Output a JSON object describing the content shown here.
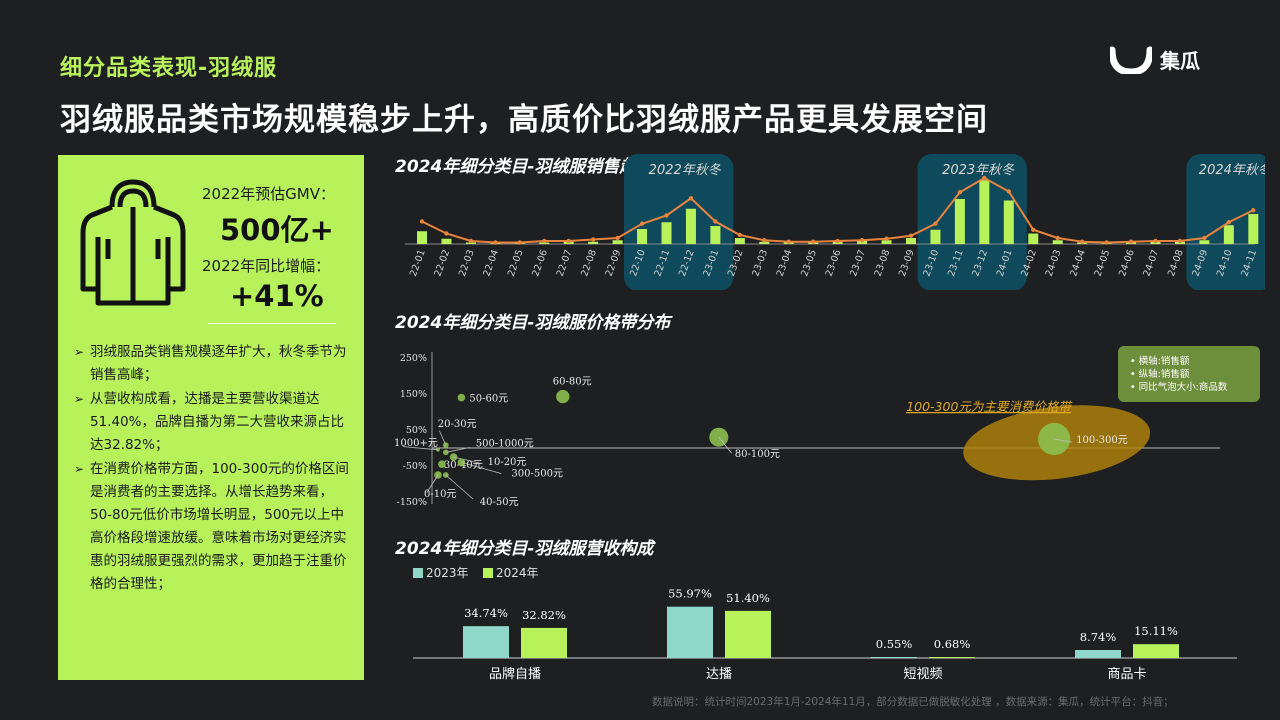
{
  "header": {
    "subtitle": "细分品类表现-羽绒服",
    "headline": "羽绒服品类市场规模稳步上升，高质价比羽绒服产品更具发展空间"
  },
  "logo": {
    "text": "集瓜",
    "icon": "jigua-logo-icon"
  },
  "sidebar": {
    "icon": "down-jacket-icon",
    "gmv_label": "2022年预估GMV：",
    "gmv_value": "500亿+",
    "growth_label": "2022年同比增幅：",
    "growth_value": "+41%",
    "bullets": [
      "羽绒服品类销售规模逐年扩大，秋冬季节为销售高峰；",
      "从营收构成看，达播是主要营收渠道达51.40%，品牌自播为第二大营收来源占比达32.82%；",
      "在消费价格带方面，100-300元的价格区间是消费者的主要选择。从增长趋势来看，50-80元低价市场增长明显，500元以上中高价格段增速放缓。意味着市场对更经济实惠的羽绒服更强烈的需求，更加趋于注重价格的合理性；"
    ]
  },
  "colors": {
    "accent": "#b7f25a",
    "line": "#e8843d",
    "teal": "#8fd8c9",
    "highlight_bg": "#0f4a5c",
    "bubble_band": "#b8860b"
  },
  "chart_data": [
    {
      "type": "bar",
      "title": "2024年细分类目-羽绒服销售趋势",
      "categories": [
        "22-01",
        "22-02",
        "22-03",
        "22-04",
        "22-05",
        "22-06",
        "22-07",
        "22-08",
        "22-09",
        "22-10",
        "22-11",
        "22-12",
        "23-01",
        "23-02",
        "23-03",
        "23-04",
        "23-05",
        "23-06",
        "23-07",
        "23-08",
        "23-09",
        "23-10",
        "23-11",
        "23-12",
        "24-01",
        "24-02",
        "24-03",
        "24-04",
        "24-05",
        "24-06",
        "24-07",
        "24-08",
        "24-09",
        "24-10",
        "24-11"
      ],
      "values": [
        17,
        7,
        2,
        1,
        1,
        2,
        3,
        3,
        5,
        20,
        29,
        47,
        24,
        8,
        3,
        2,
        2,
        3,
        4,
        5,
        8,
        19,
        60,
        85,
        58,
        14,
        5,
        2,
        1,
        2,
        3,
        3,
        5,
        25,
        40
      ],
      "line_values": [
        30,
        14,
        4,
        2,
        2,
        4,
        4,
        6,
        8,
        27,
        38,
        61,
        30,
        12,
        5,
        3,
        3,
        4,
        5,
        7,
        11,
        27,
        69,
        88,
        70,
        19,
        8,
        3,
        2,
        3,
        4,
        4,
        8,
        29,
        45
      ],
      "ylim": [
        0,
        100
      ],
      "highlights": [
        {
          "label": "2022年秋冬",
          "from": "22-10",
          "to": "23-01"
        },
        {
          "label": "2023年秋冬",
          "from": "23-10",
          "to": "24-01"
        },
        {
          "label": "2024年秋冬",
          "from": "24-09",
          "to": "24-11"
        }
      ]
    },
    {
      "type": "scatter",
      "title": "2024年细分类目-羽绒服价格带分布",
      "y_ticks": [
        "250%",
        "150%",
        "50%",
        "-50%",
        "-150%"
      ],
      "ylim": [
        -150,
        250
      ],
      "xlim": [
        0,
        100
      ],
      "legend": [
        {
          "marker": "•",
          "text": "横轴:销售额"
        },
        {
          "marker": "•",
          "text": "纵轴:销售额"
        },
        {
          "marker": "•",
          "text": "同比气泡大小:商品数"
        }
      ],
      "annotation": "100-300元为主要消费价格带",
      "points": [
        {
          "label": "50-60元",
          "x": 3,
          "y": 140,
          "size": 4
        },
        {
          "label": "60-80元",
          "x": 16,
          "y": 143,
          "size": 7
        },
        {
          "label": "80-100元",
          "x": 36,
          "y": 30,
          "size": 10
        },
        {
          "label": "100-300元",
          "x": 79,
          "y": 25,
          "size": 17
        },
        {
          "label": "20-30元",
          "x": 1,
          "y": 8,
          "size": 3
        },
        {
          "label": "1000+元",
          "x": 0,
          "y": -5,
          "size": 2
        },
        {
          "label": "500-1000元",
          "x": 1,
          "y": -12,
          "size": 3
        },
        {
          "label": "10-20元",
          "x": 2,
          "y": -25,
          "size": 4
        },
        {
          "label": "30-40元",
          "x": 0.5,
          "y": -45,
          "size": 4
        },
        {
          "label": "300-500元",
          "x": 3,
          "y": -40,
          "size": 4
        },
        {
          "label": "0-10元",
          "x": 0,
          "y": -75,
          "size": 4
        },
        {
          "label": "40-50元",
          "x": 1,
          "y": -75,
          "size": 3
        }
      ]
    },
    {
      "type": "bar",
      "title": "2024年细分类目-羽绒服营收构成",
      "categories": [
        "品牌自播",
        "达播",
        "短视频",
        "商品卡"
      ],
      "series": [
        {
          "name": "2023年",
          "values": [
            34.74,
            55.97,
            0.55,
            8.74
          ],
          "labels": [
            "34.74%",
            "55.97%",
            "0.55%",
            "8.74%"
          ]
        },
        {
          "name": "2024年",
          "values": [
            32.82,
            51.4,
            0.68,
            15.11
          ],
          "labels": [
            "32.82%",
            "51.40%",
            "0.68%",
            "15.11%"
          ]
        }
      ],
      "ylim": [
        0,
        60
      ],
      "legend_position": "top-left"
    }
  ],
  "footnote": "数据说明：统计时间2023年1月-2024年11月，部分数据已做脱敏化处理 ，数据来源：集瓜，统计平台：抖音；"
}
